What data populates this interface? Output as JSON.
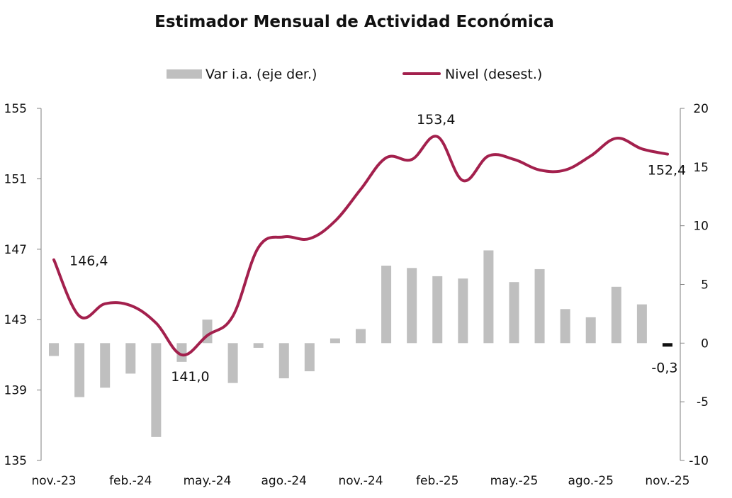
{
  "chart_data": {
    "type": "bar+line",
    "title": "Estimador Mensual de Actividad Económica",
    "categories": [
      "nov.-23",
      "dic.-23",
      "ene.-24",
      "feb.-24",
      "mar.-24",
      "abr.-24",
      "may.-24",
      "jun.-24",
      "jul.-24",
      "ago.-24",
      "sep.-24",
      "oct.-24",
      "nov.-24",
      "dic.-24",
      "ene.-25",
      "feb.-25",
      "mar.-25",
      "abr.-25",
      "may.-25",
      "jun.-25",
      "jul.-25",
      "ago.-25",
      "sep.-25",
      "oct.-25",
      "nov.-25"
    ],
    "x_tick_labels": [
      "nov.-23",
      "feb.-24",
      "may.-24",
      "ago.-24",
      "nov.-24",
      "feb.-25",
      "may.-25",
      "ago.-25",
      "nov.-25"
    ],
    "series": [
      {
        "name": "Var i.a. (eje der.)",
        "type": "bar",
        "axis": "right",
        "color": "#bfbfbf",
        "values": [
          -1.1,
          -4.6,
          -3.8,
          -2.6,
          -8.0,
          -1.6,
          2.0,
          -3.4,
          -0.4,
          -3.0,
          -2.4,
          0.4,
          1.2,
          6.6,
          6.4,
          5.7,
          5.5,
          7.9,
          5.2,
          6.3,
          2.9,
          2.2,
          4.8,
          3.3,
          -0.3
        ],
        "highlight_color": "#111111"
      },
      {
        "name": "Nivel (desest.)",
        "type": "line",
        "axis": "left",
        "color": "#a3204d",
        "values": [
          146.4,
          143.2,
          143.9,
          143.8,
          142.8,
          141.0,
          142.1,
          143.2,
          147.1,
          147.7,
          147.6,
          148.6,
          150.4,
          152.2,
          152.1,
          153.4,
          150.9,
          152.3,
          152.1,
          151.5,
          151.5,
          152.3,
          153.3,
          152.7,
          152.4
        ]
      }
    ],
    "y_left": {
      "min": 135,
      "max": 155,
      "ticks": [
        "135",
        "139",
        "143",
        "147",
        "151",
        "155"
      ]
    },
    "y_right": {
      "min": -10,
      "max": 20,
      "ticks": [
        "-10",
        "-5",
        "0",
        "5",
        "10",
        "15",
        "20"
      ]
    },
    "data_labels": [
      {
        "series": "Nivel (desest.)",
        "index": 0,
        "text": "146,4"
      },
      {
        "series": "Nivel (desest.)",
        "index": 5,
        "text": "141,0"
      },
      {
        "series": "Nivel (desest.)",
        "index": 15,
        "text": "153,4"
      },
      {
        "series": "Nivel (desest.)",
        "index": 24,
        "text": "152,4"
      },
      {
        "series": "Var i.a. (eje der.)",
        "index": 24,
        "text": "-0,3"
      }
    ],
    "legend": {
      "position": "top-center",
      "items": [
        {
          "label": "Var i.a. (eje der.)",
          "kind": "bar",
          "color": "#bfbfbf"
        },
        {
          "label": "Nivel (desest.)",
          "kind": "line",
          "color": "#a3204d"
        }
      ]
    },
    "grid": false
  }
}
